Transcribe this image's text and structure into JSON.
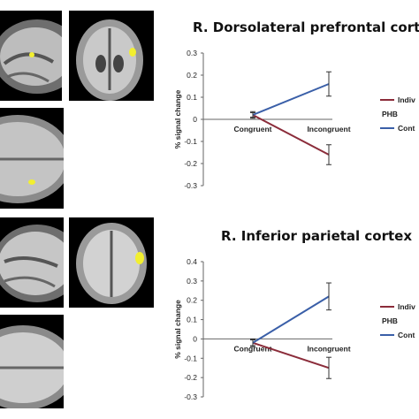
{
  "chart_data": [
    {
      "type": "line",
      "title": "R. Dorsolateral prefrontal cortex",
      "ylabel": "% signal change",
      "categories": [
        "Congruent",
        "Incongruent"
      ],
      "ylim": [
        -0.3,
        0.3
      ],
      "yticks": [
        "0.3",
        "0.2",
        "0.1",
        "0",
        "-0.1",
        "-0.2",
        "-0.3"
      ],
      "ytick_values": [
        0.3,
        0.2,
        0.1,
        0,
        -0.1,
        -0.2,
        -0.3
      ],
      "series": [
        {
          "name": "Indiv",
          "color": "#8b2c3a",
          "values": [
            0.02,
            -0.16
          ],
          "errors": [
            0.015,
            0.045
          ]
        },
        {
          "name": "Cont",
          "color": "#3a5fa8",
          "values": [
            0.02,
            0.16
          ],
          "errors": [
            0.01,
            0.055
          ]
        }
      ],
      "legend_extra": "PHB",
      "legend_position": "right"
    },
    {
      "type": "line",
      "title": "R. Inferior parietal cortex",
      "ylabel": "% signal change",
      "categories": [
        "Congruent",
        "Incongruent"
      ],
      "ylim": [
        -0.3,
        0.4
      ],
      "yticks": [
        "0.4",
        "0.3",
        "0.2",
        "0.1",
        "0",
        "-0.1",
        "-0.2",
        "-0.3"
      ],
      "ytick_values": [
        0.4,
        0.3,
        0.2,
        0.1,
        0,
        -0.1,
        -0.2,
        -0.3
      ],
      "series": [
        {
          "name": "Indiv",
          "color": "#8b2c3a",
          "values": [
            -0.02,
            -0.15
          ],
          "errors": [
            0.02,
            0.055
          ]
        },
        {
          "name": "Cont",
          "color": "#3a5fa8",
          "values": [
            -0.02,
            0.22
          ],
          "errors": [
            0.015,
            0.07
          ]
        }
      ],
      "legend_extra": "PHB",
      "legend_position": "right"
    }
  ]
}
